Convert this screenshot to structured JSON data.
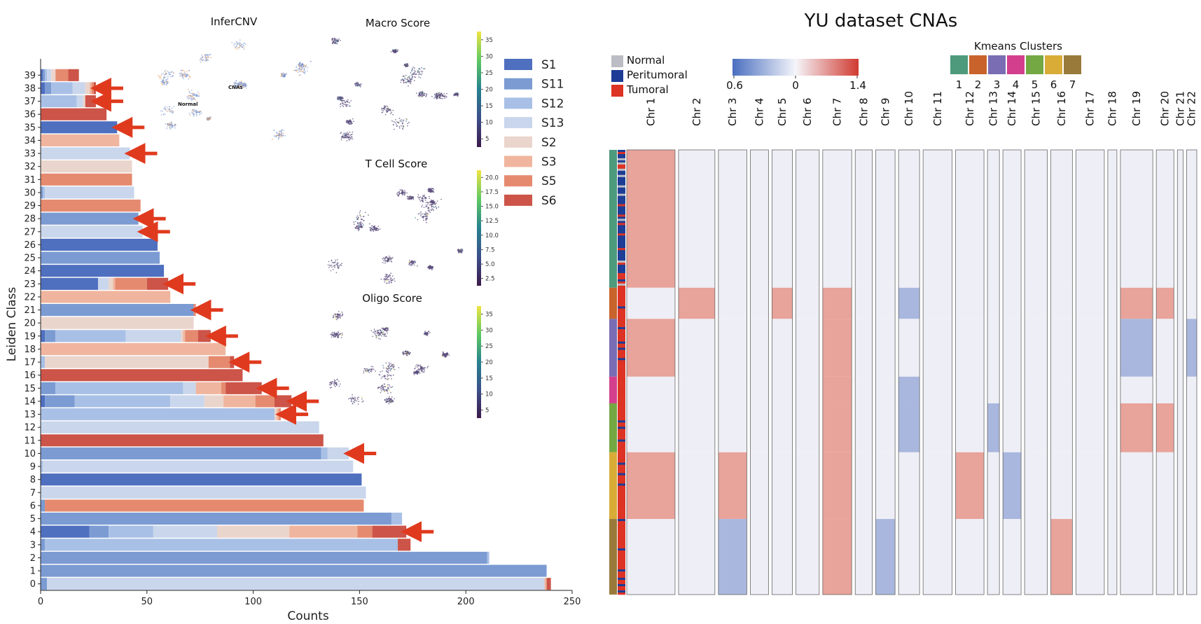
{
  "chart_data": [
    {
      "type": "bar",
      "orientation": "horizontal",
      "stacked": true,
      "xlabel": "Counts",
      "ylabel": "Leiden Class",
      "xlim": [
        0,
        250
      ],
      "xticks": [
        0,
        50,
        100,
        150,
        200,
        250
      ],
      "categories": [
        "0",
        "1",
        "2",
        "3",
        "4",
        "5",
        "6",
        "7",
        "8",
        "9",
        "10",
        "11",
        "12",
        "13",
        "14",
        "15",
        "16",
        "17",
        "18",
        "19",
        "20",
        "21",
        "22",
        "23",
        "24",
        "25",
        "26",
        "27",
        "28",
        "29",
        "30",
        "31",
        "32",
        "33",
        "34",
        "35",
        "36",
        "37",
        "38",
        "39"
      ],
      "legend_position": "right",
      "series": [
        {
          "name": "S1",
          "color": "#4f6fbf",
          "values": [
            0,
            0,
            0,
            0,
            23,
            0,
            0,
            0,
            151,
            0,
            0,
            0,
            0,
            0,
            2,
            0,
            0,
            0,
            0,
            2,
            0,
            0,
            0,
            27,
            58,
            0,
            55,
            0,
            0,
            0,
            0,
            0,
            0,
            0,
            0,
            36,
            0,
            0,
            2,
            1
          ]
        },
        {
          "name": "S11",
          "color": "#7b9bd2",
          "values": [
            3,
            238,
            210,
            2,
            9,
            165,
            2,
            0,
            0,
            0,
            132,
            0,
            0,
            0,
            14,
            7,
            0,
            0,
            0,
            5,
            0,
            72,
            0,
            0,
            0,
            56,
            0,
            0,
            46,
            0,
            1,
            0,
            0,
            0,
            0,
            0,
            0,
            0,
            3,
            1
          ]
        },
        {
          "name": "S12",
          "color": "#a9c0e6",
          "values": [
            0,
            0,
            1,
            166,
            21,
            5,
            0,
            0,
            0,
            1,
            3,
            0,
            0,
            110,
            45,
            60,
            0,
            2,
            0,
            33,
            0,
            0,
            0,
            0,
            0,
            0,
            0,
            0,
            0,
            0,
            1,
            0,
            0,
            0,
            0,
            0,
            0,
            17,
            10,
            1
          ]
        },
        {
          "name": "S13",
          "color": "#c9d6ec",
          "values": [
            234,
            0,
            0,
            0,
            30,
            0,
            0,
            153,
            0,
            146,
            10,
            0,
            131,
            0,
            16,
            6,
            0,
            0,
            0,
            26,
            0,
            0,
            0,
            5,
            0,
            0,
            0,
            48,
            0,
            0,
            42,
            0,
            0,
            42,
            0,
            0,
            0,
            3,
            6,
            2
          ]
        },
        {
          "name": "S2",
          "color": "#ead5cc",
          "values": [
            0,
            0,
            0,
            0,
            34,
            0,
            0,
            0,
            0,
            0,
            0,
            0,
            0,
            1,
            9,
            0,
            0,
            77,
            0,
            1,
            72,
            0,
            0,
            2,
            0,
            0,
            0,
            0,
            0,
            0,
            0,
            0,
            43,
            0,
            0,
            0,
            0,
            1,
            2,
            2
          ]
        },
        {
          "name": "S3",
          "color": "#f0b59e",
          "values": [
            1,
            0,
            0,
            0,
            32,
            0,
            0,
            0,
            0,
            0,
            0,
            0,
            0,
            1,
            15,
            12,
            0,
            0,
            87,
            1,
            0,
            0,
            61,
            1,
            0,
            0,
            0,
            0,
            0,
            0,
            0,
            0,
            0,
            0,
            37,
            0,
            0,
            0,
            1,
            0
          ]
        },
        {
          "name": "S5",
          "color": "#e58a6f",
          "values": [
            0,
            0,
            0,
            0,
            7,
            0,
            150,
            0,
            0,
            0,
            0,
            0,
            0,
            1,
            9,
            2,
            0,
            10,
            0,
            6,
            0,
            1,
            0,
            15,
            0,
            0,
            0,
            0,
            0,
            47,
            0,
            43,
            0,
            0,
            0,
            0,
            0,
            0,
            1,
            6
          ]
        },
        {
          "name": "S6",
          "color": "#cc5448",
          "values": [
            2,
            0,
            0,
            6,
            16,
            0,
            0,
            0,
            0,
            0,
            0,
            133,
            0,
            0,
            8,
            17,
            95,
            2,
            0,
            6,
            0,
            0,
            0,
            10,
            0,
            0,
            0,
            0,
            0,
            0,
            0,
            0,
            0,
            0,
            0,
            0,
            31,
            5,
            1,
            5
          ]
        }
      ],
      "annotations": {
        "arrow_classes": [
          "4",
          "10",
          "13",
          "14",
          "15",
          "17",
          "19",
          "21",
          "23",
          "27",
          "28",
          "33",
          "35",
          "37",
          "38"
        ]
      }
    },
    {
      "type": "scatter",
      "title": "InferCNV",
      "labels": [
        "Normal",
        "CNAs"
      ]
    },
    {
      "type": "scatter",
      "title": "Macro Score",
      "colorbar_ticks": [
        "35",
        "30",
        "25",
        "20",
        "15",
        "10",
        "5"
      ]
    },
    {
      "type": "scatter",
      "title": "T Cell Score",
      "colorbar_ticks": [
        "20.0",
        "17.5",
        "15.0",
        "12.5",
        "10.0",
        "7.5",
        "5.0",
        "2.5"
      ]
    },
    {
      "type": "scatter",
      "title": "Oligo Score",
      "colorbar_ticks": [
        "35",
        "30",
        "25",
        "20",
        "15",
        "10",
        "5"
      ]
    },
    {
      "type": "heatmap",
      "title": "YU dataset CNAs",
      "sample_legend": [
        {
          "label": "Normal",
          "color": "#bcbcc4"
        },
        {
          "label": "Peritumoral",
          "color": "#1c3c96"
        },
        {
          "label": "Tumoral",
          "color": "#dd3324"
        }
      ],
      "colorscale": {
        "low": "0.6",
        "mid": "0",
        "high": "1.4",
        "colors": [
          "#4a6fc0",
          "#f5f5fa",
          "#d03a30"
        ]
      },
      "kmeans_title": "Kmeans Clusters",
      "kmeans_clusters": [
        {
          "label": "1",
          "color": "#4d9a7d"
        },
        {
          "label": "2",
          "color": "#c8632b"
        },
        {
          "label": "3",
          "color": "#7a6db4"
        },
        {
          "label": "4",
          "color": "#d43f8d"
        },
        {
          "label": "5",
          "color": "#74a843"
        },
        {
          "label": "6",
          "color": "#d8ac37"
        },
        {
          "label": "7",
          "color": "#9a7a3a"
        }
      ],
      "cluster_fraction": [
        0.31,
        0.07,
        0.13,
        0.06,
        0.11,
        0.15,
        0.17
      ],
      "chromosomes": [
        "Chr 1",
        "Chr 2",
        "Chr 3",
        "Chr 4",
        "Chr 5",
        "Chr 6",
        "Chr 7",
        "Chr 8",
        "Chr 9",
        "Chr 10",
        "Chr 11",
        "Chr 12",
        "Chr 13",
        "Chr 14",
        "Chr 15",
        "Chr 16",
        "Chr 17",
        "Chr 18",
        "Chr 19",
        "Chr 20",
        "Chr 21",
        "Chr 22"
      ],
      "chromosome_relative_size": [
        8.5,
        6.4,
        5.0,
        3.2,
        3.6,
        4.1,
        5.1,
        3.0,
        3.4,
        3.7,
        5.1,
        5.0,
        2.1,
        3.2,
        4.0,
        3.8,
        5.0,
        1.6,
        5.7,
        3.1,
        1.0,
        1.8
      ],
      "cluster_chr_state": {
        "1": {
          "Chr 1": "gain"
        },
        "2": {
          "Chr 2": "gain",
          "Chr 5": "gain",
          "Chr 7": "gain",
          "Chr 10": "loss",
          "Chr 19": "gain",
          "Chr 20": "gain"
        },
        "3": {
          "Chr 1": "gain",
          "Chr 7": "gain",
          "Chr 19": "loss",
          "Chr 22": "loss"
        },
        "4": {
          "Chr 7": "gain",
          "Chr 10": "loss"
        },
        "5": {
          "Chr 7": "gain",
          "Chr 10": "loss",
          "Chr 13": "loss",
          "Chr 19": "gain",
          "Chr 20": "gain"
        },
        "6": {
          "Chr 1": "gain",
          "Chr 3": "gain",
          "Chr 7": "gain",
          "Chr 12": "gain",
          "Chr 14": "loss"
        },
        "7": {
          "Chr 3": "loss",
          "Chr 7": "gain",
          "Chr 9": "loss",
          "Chr 16": "gain"
        }
      }
    }
  ]
}
